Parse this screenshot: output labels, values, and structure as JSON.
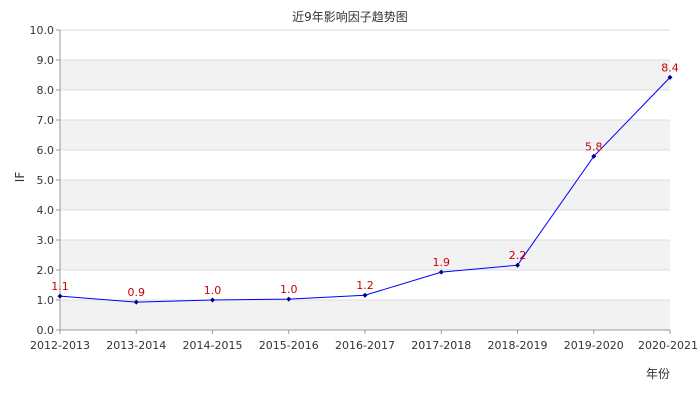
{
  "chart_data": {
    "type": "line",
    "title": "近9年影响因子趋势图",
    "xlabel": "年份",
    "ylabel": "IF",
    "categories": [
      "2012-2013",
      "2013-2014",
      "2014-2015",
      "2015-2016",
      "2016-2017",
      "2017-2018",
      "2018-2019",
      "2019-2020",
      "2020-2021"
    ],
    "values": [
      1.13,
      0.93,
      1.0,
      1.03,
      1.16,
      1.93,
      2.16,
      5.79,
      8.42
    ],
    "data_labels": [
      "1.1",
      "0.9",
      "1.0",
      "1.0",
      "1.2",
      "1.9",
      "2.2",
      "5.8",
      "8.4"
    ],
    "ylim": [
      0,
      10
    ],
    "yticks": [
      "0.0",
      "1.0",
      "2.0",
      "3.0",
      "4.0",
      "5.0",
      "6.0",
      "7.0",
      "8.0",
      "9.0",
      "10.0"
    ],
    "grid": true,
    "colors": {
      "line": "#0000ff",
      "marker": "#000080",
      "data_label": "#cc0000",
      "band": "#f2f2f2",
      "gridline": "#dddddd",
      "text": "#333333"
    }
  }
}
